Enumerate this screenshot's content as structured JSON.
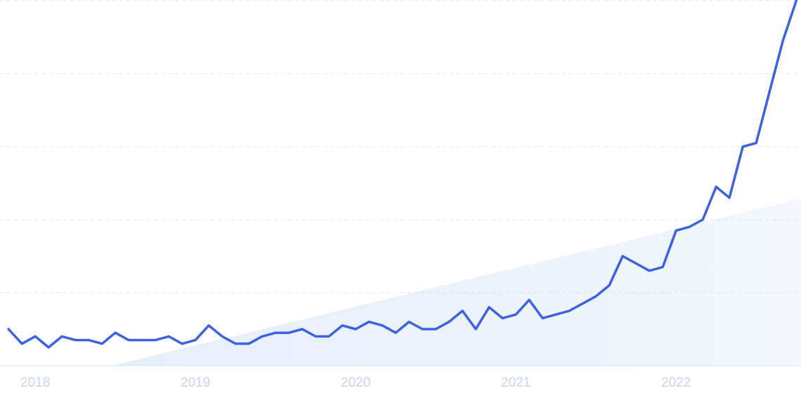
{
  "chart_data": {
    "type": "line",
    "x": [
      2017.833,
      2017.917,
      2018,
      2018.083,
      2018.167,
      2018.25,
      2018.333,
      2018.417,
      2018.5,
      2018.583,
      2018.667,
      2018.75,
      2018.833,
      2018.917,
      2019,
      2019.083,
      2019.167,
      2019.25,
      2019.333,
      2019.417,
      2019.5,
      2019.583,
      2019.667,
      2019.75,
      2019.833,
      2019.917,
      2020,
      2020.083,
      2020.167,
      2020.25,
      2020.333,
      2020.417,
      2020.5,
      2020.583,
      2020.667,
      2020.75,
      2020.833,
      2020.917,
      2021,
      2021.083,
      2021.167,
      2021.25,
      2021.333,
      2021.417,
      2021.5,
      2021.583,
      2021.667,
      2021.75,
      2021.833,
      2021.917,
      2022,
      2022.083,
      2022.167,
      2022.25,
      2022.333,
      2022.417,
      2022.5,
      2022.583,
      2022.667,
      2022.75
    ],
    "series": [
      {
        "color": "#3a62e2",
        "values": [
          10,
          6,
          8,
          5,
          8,
          7,
          7,
          6,
          9,
          7,
          7,
          7,
          8,
          6,
          7,
          11,
          8,
          6,
          6,
          8,
          9,
          9,
          10,
          8,
          8,
          11,
          10,
          12,
          11,
          9,
          12,
          10,
          10,
          12,
          15,
          10,
          16,
          13,
          14,
          18,
          13,
          14,
          15,
          17,
          19,
          22,
          30,
          28,
          26,
          27,
          37,
          38,
          40,
          49,
          46,
          60,
          61,
          75,
          89,
          100
        ]
      }
    ],
    "xlim": [
      2017.78,
      2022.78
    ],
    "xticks": [
      2018,
      2019,
      2020,
      2021,
      2022
    ],
    "ylim": [
      0,
      100
    ],
    "yticks": [
      0,
      20,
      40,
      60,
      80,
      100
    ],
    "grid": true
  }
}
